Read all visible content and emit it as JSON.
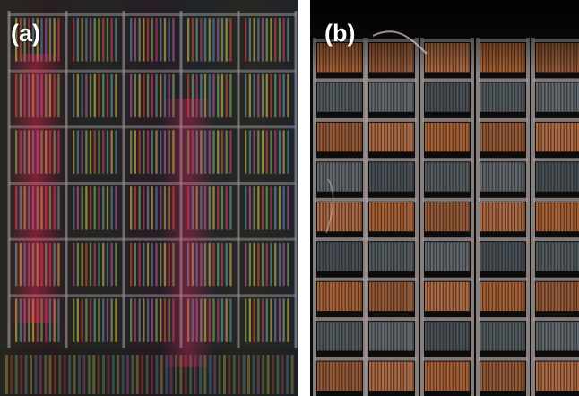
{
  "panels": [
    {
      "id": "a",
      "label": "(a)",
      "rows": 6,
      "columns": 5,
      "fingers_per_cell": 11
    },
    {
      "id": "b",
      "label": "(b)",
      "rows": 9,
      "columns": 5,
      "fingers_per_cell": 14
    }
  ],
  "colors": {
    "background": "#ffffff",
    "panel_a_base": "#1a1a1e",
    "panel_a_bus": "#8e8f95",
    "panel_b_base": "#0e0b0b",
    "panel_b_bus": "#9c9493",
    "label": "#ffffff"
  }
}
